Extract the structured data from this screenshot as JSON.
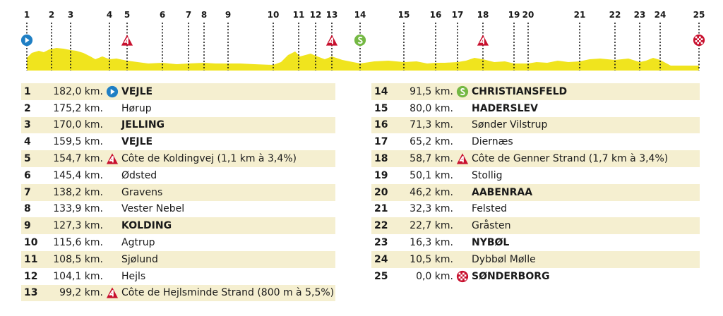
{
  "colors": {
    "profile_fill": "#f0e41e",
    "row_shade": "#f5efd0",
    "start": "#1f7fc4",
    "climb": "#c8102e",
    "sprint": "#74b843",
    "finish": "#c8102e"
  },
  "waypoints": [
    {
      "n": "1",
      "km": "182,0 km.",
      "name": "VEJLE",
      "icon": "start-icon",
      "bold": true
    },
    {
      "n": "2",
      "km": "175,2 km.",
      "name": "Hørup",
      "icon": "",
      "bold": false
    },
    {
      "n": "3",
      "km": "170,0 km.",
      "name": "JELLING",
      "icon": "",
      "bold": true
    },
    {
      "n": "4",
      "km": "159,5 km.",
      "name": "VEJLE",
      "icon": "",
      "bold": true
    },
    {
      "n": "5",
      "km": "154,7 km.",
      "name": "Côte de Koldingvej (1,1 km à 3,4%)",
      "icon": "climb-icon",
      "bold": false
    },
    {
      "n": "6",
      "km": "145,4 km.",
      "name": "Ødsted",
      "icon": "",
      "bold": false
    },
    {
      "n": "7",
      "km": "138,2 km.",
      "name": "Gravens",
      "icon": "",
      "bold": false
    },
    {
      "n": "8",
      "km": "133,9 km.",
      "name": "Vester Nebel",
      "icon": "",
      "bold": false
    },
    {
      "n": "9",
      "km": "127,3 km.",
      "name": "KOLDING",
      "icon": "",
      "bold": true
    },
    {
      "n": "10",
      "km": "115,6 km.",
      "name": "Agtrup",
      "icon": "",
      "bold": false
    },
    {
      "n": "11",
      "km": "108,5 km.",
      "name": "Sjølund",
      "icon": "",
      "bold": false
    },
    {
      "n": "12",
      "km": "104,1 km.",
      "name": "Hejls",
      "icon": "",
      "bold": false
    },
    {
      "n": "13",
      "km": "99,2 km.",
      "name": "Côte de Hejlsminde Strand (800 m à 5,5%)",
      "icon": "climb-icon",
      "bold": false
    },
    {
      "n": "14",
      "km": "91,5 km.",
      "name": "CHRISTIANSFELD",
      "icon": "sprint-icon",
      "bold": true
    },
    {
      "n": "15",
      "km": "80,0 km.",
      "name": "HADERSLEV",
      "icon": "",
      "bold": true
    },
    {
      "n": "16",
      "km": "71,3 km.",
      "name": "Sønder Vilstrup",
      "icon": "",
      "bold": false
    },
    {
      "n": "17",
      "km": "65,2 km.",
      "name": "Diernæs",
      "icon": "",
      "bold": false
    },
    {
      "n": "18",
      "km": "58,7 km.",
      "name": "Côte de Genner Strand (1,7 km à 3,4%)",
      "icon": "climb-icon",
      "bold": false
    },
    {
      "n": "19",
      "km": "50,1 km.",
      "name": "Stollig",
      "icon": "",
      "bold": false
    },
    {
      "n": "20",
      "km": "46,2 km.",
      "name": "AABENRAA",
      "icon": "",
      "bold": true
    },
    {
      "n": "21",
      "km": "32,3 km.",
      "name": "Felsted",
      "icon": "",
      "bold": false
    },
    {
      "n": "22",
      "km": "22,7 km.",
      "name": "Gråsten",
      "icon": "",
      "bold": false
    },
    {
      "n": "23",
      "km": "16,3 km.",
      "name": "NYBØL",
      "icon": "",
      "bold": true
    },
    {
      "n": "24",
      "km": "10,5 km.",
      "name": "Dybbøl Mølle",
      "icon": "",
      "bold": false
    },
    {
      "n": "25",
      "km": "0,0 km.",
      "name": "SØNDERBORG",
      "icon": "finish-icon",
      "bold": true
    }
  ]
}
